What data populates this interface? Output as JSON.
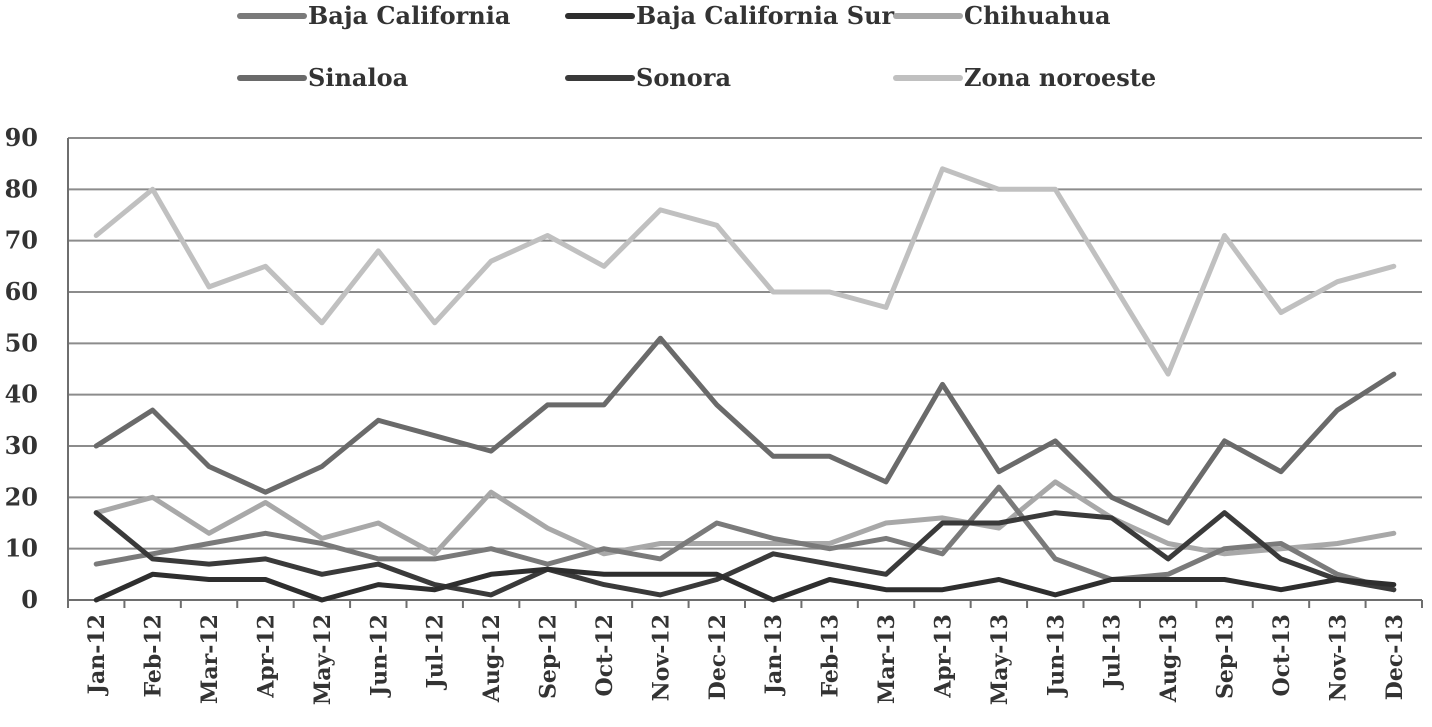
{
  "chart_data": {
    "type": "line",
    "title": "",
    "xlabel": "",
    "ylabel": "",
    "ylim": [
      0,
      90
    ],
    "yticks": [
      0,
      10,
      20,
      30,
      40,
      50,
      60,
      70,
      80,
      90
    ],
    "grid": "horizontal",
    "legend_position": "top",
    "categories": [
      "Jan-12",
      "Feb-12",
      "Mar-12",
      "Apr-12",
      "May-12",
      "Jun-12",
      "Jul-12",
      "Aug-12",
      "Sep-12",
      "Oct-12",
      "Nov-12",
      "Dec-12",
      "Jan-13",
      "Feb-13",
      "Mar-13",
      "Apr-13",
      "May-13",
      "Jun-13",
      "Jul-13",
      "Aug-13",
      "Sep-13",
      "Oct-13",
      "Nov-13",
      "Dec-13"
    ],
    "series": [
      {
        "name": "Baja California",
        "color": "#7a7a7a",
        "values": [
          7,
          9,
          11,
          13,
          11,
          8,
          8,
          10,
          7,
          10,
          8,
          15,
          12,
          10,
          12,
          9,
          22,
          8,
          4,
          5,
          10,
          11,
          5,
          2
        ]
      },
      {
        "name": "Baja California Sur",
        "color": "#2e2e2e",
        "values": [
          0,
          5,
          4,
          4,
          0,
          3,
          2,
          5,
          6,
          5,
          5,
          5,
          0,
          4,
          2,
          2,
          4,
          1,
          4,
          4,
          4,
          2,
          4,
          3
        ]
      },
      {
        "name": "Chihuahua",
        "color": "#a8a8a8",
        "values": [
          17,
          20,
          13,
          19,
          12,
          15,
          9,
          21,
          14,
          9,
          11,
          11,
          11,
          11,
          15,
          16,
          14,
          23,
          16,
          11,
          9,
          10,
          11,
          13
        ]
      },
      {
        "name": "Sinaloa",
        "color": "#6a6a6a",
        "values": [
          30,
          37,
          26,
          21,
          26,
          35,
          32,
          29,
          38,
          38,
          51,
          38,
          28,
          28,
          23,
          42,
          25,
          31,
          20,
          15,
          31,
          25,
          37,
          44
        ]
      },
      {
        "name": "Sonora",
        "color": "#3a3a3a",
        "values": [
          17,
          8,
          7,
          8,
          5,
          7,
          3,
          1,
          6,
          3,
          1,
          4,
          9,
          7,
          5,
          15,
          15,
          17,
          16,
          8,
          17,
          8,
          4,
          2
        ]
      },
      {
        "name": "Zona noroeste",
        "color": "#c0c0c0",
        "values": [
          71,
          80,
          61,
          65,
          54,
          68,
          54,
          66,
          71,
          65,
          76,
          73,
          60,
          60,
          57,
          84,
          80,
          80,
          62,
          44,
          71,
          56,
          62,
          65
        ]
      }
    ]
  }
}
